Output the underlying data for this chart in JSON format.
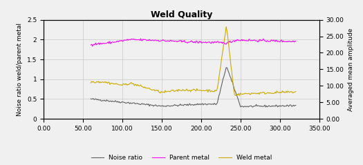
{
  "title": "Weld Quality",
  "ylabel_left": "Noise ratio weld/parent metal",
  "ylabel_right": "Averaged mean amplitude",
  "xlim": [
    0.0,
    350.0
  ],
  "ylim_left": [
    0,
    2.5
  ],
  "ylim_right": [
    0.0,
    30.0
  ],
  "xticks": [
    0.0,
    50.0,
    100.0,
    150.0,
    200.0,
    250.0,
    300.0,
    350.0
  ],
  "yticks_left": [
    0,
    0.5,
    1.0,
    1.5,
    2.0,
    2.5
  ],
  "yticks_right": [
    0.0,
    5.0,
    10.0,
    15.0,
    20.0,
    25.0,
    30.0
  ],
  "legend": [
    "Noise ratio",
    "Parent metal",
    "Weld metal"
  ],
  "noise_color": "#606060",
  "parent_color": "#ff00ff",
  "weld_color": "#ccaa00",
  "background": "#f0f0f0",
  "grid_color": "#c8c8c8",
  "title_fontsize": 9,
  "label_fontsize": 6.5,
  "tick_fontsize": 6.5
}
